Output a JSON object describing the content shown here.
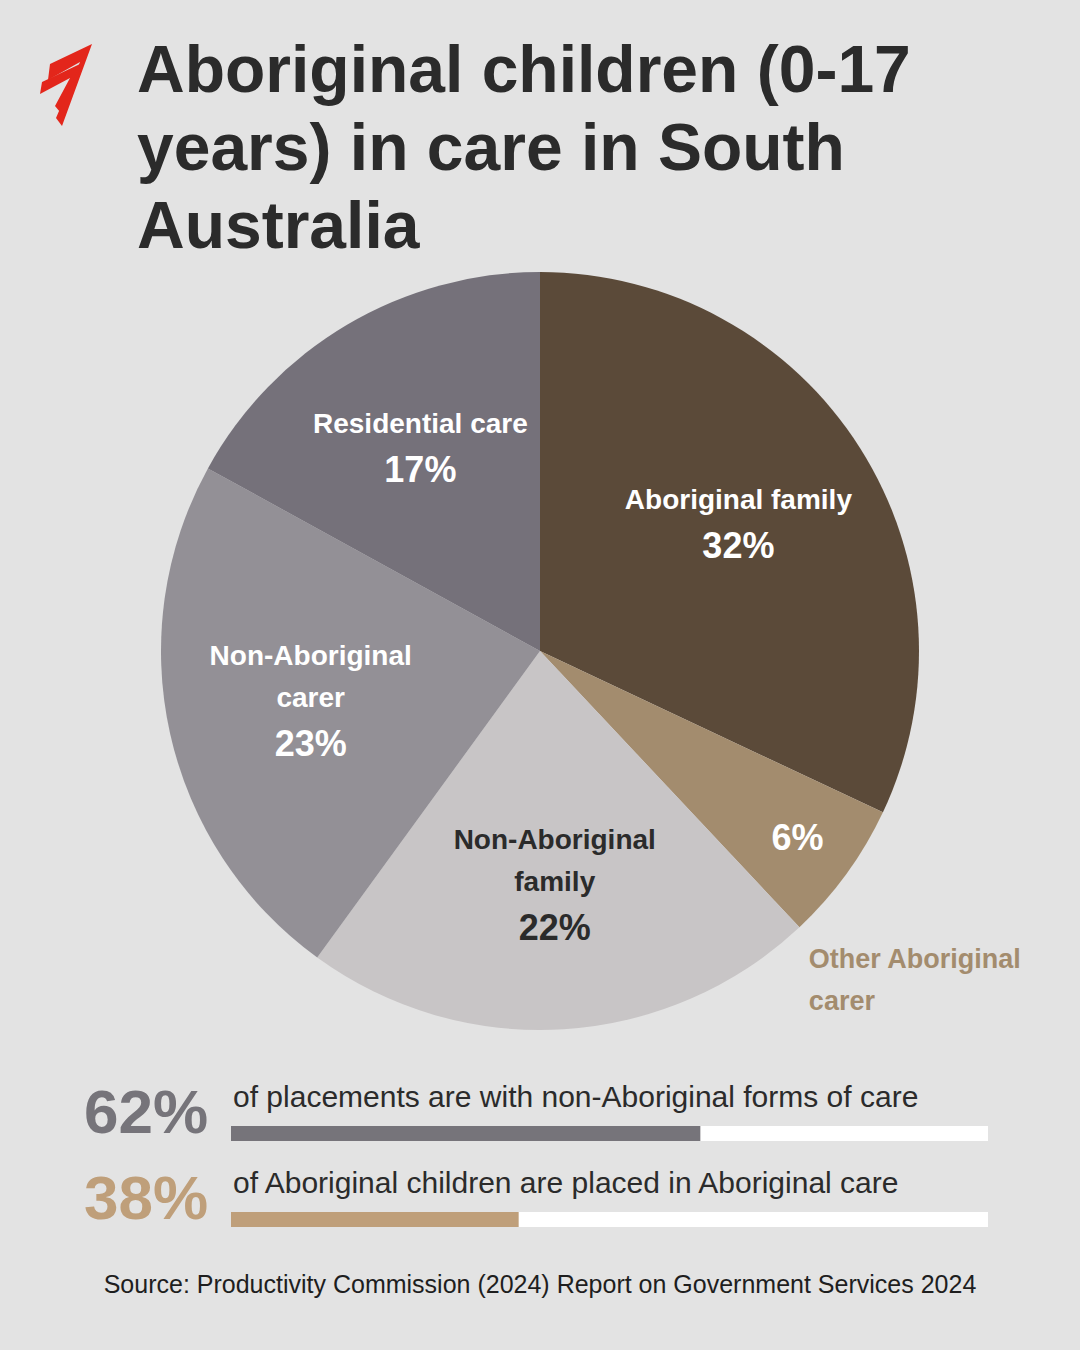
{
  "chart_data": {
    "type": "pie",
    "title": "Aboriginal children (0-17 years) in care in South Australia",
    "categories": [
      "Aboriginal family",
      "Other Aboriginal carer",
      "Non-Aboriginal family",
      "Non-Aboriginal carer",
      "Residential care"
    ],
    "values": [
      32,
      6,
      22,
      23,
      17
    ],
    "value_labels": [
      "32%",
      "6%",
      "22%",
      "23%",
      "17%"
    ],
    "colors": [
      "#5b4a39",
      "#a38c6e",
      "#c8c5c6",
      "#939096",
      "#75717a"
    ],
    "data_labels": true
  },
  "summary": [
    {
      "value": 62,
      "label": "62%",
      "text": "of placements are with non-Aboriginal forms of care",
      "color": "#76747a"
    },
    {
      "value": 38,
      "label": "38%",
      "text": "of Aboriginal children are placed in Aboriginal care",
      "color": "#bf9f7a"
    }
  ],
  "source": "Source:  Productivity Commission (2024) Report on Government Services 2024"
}
